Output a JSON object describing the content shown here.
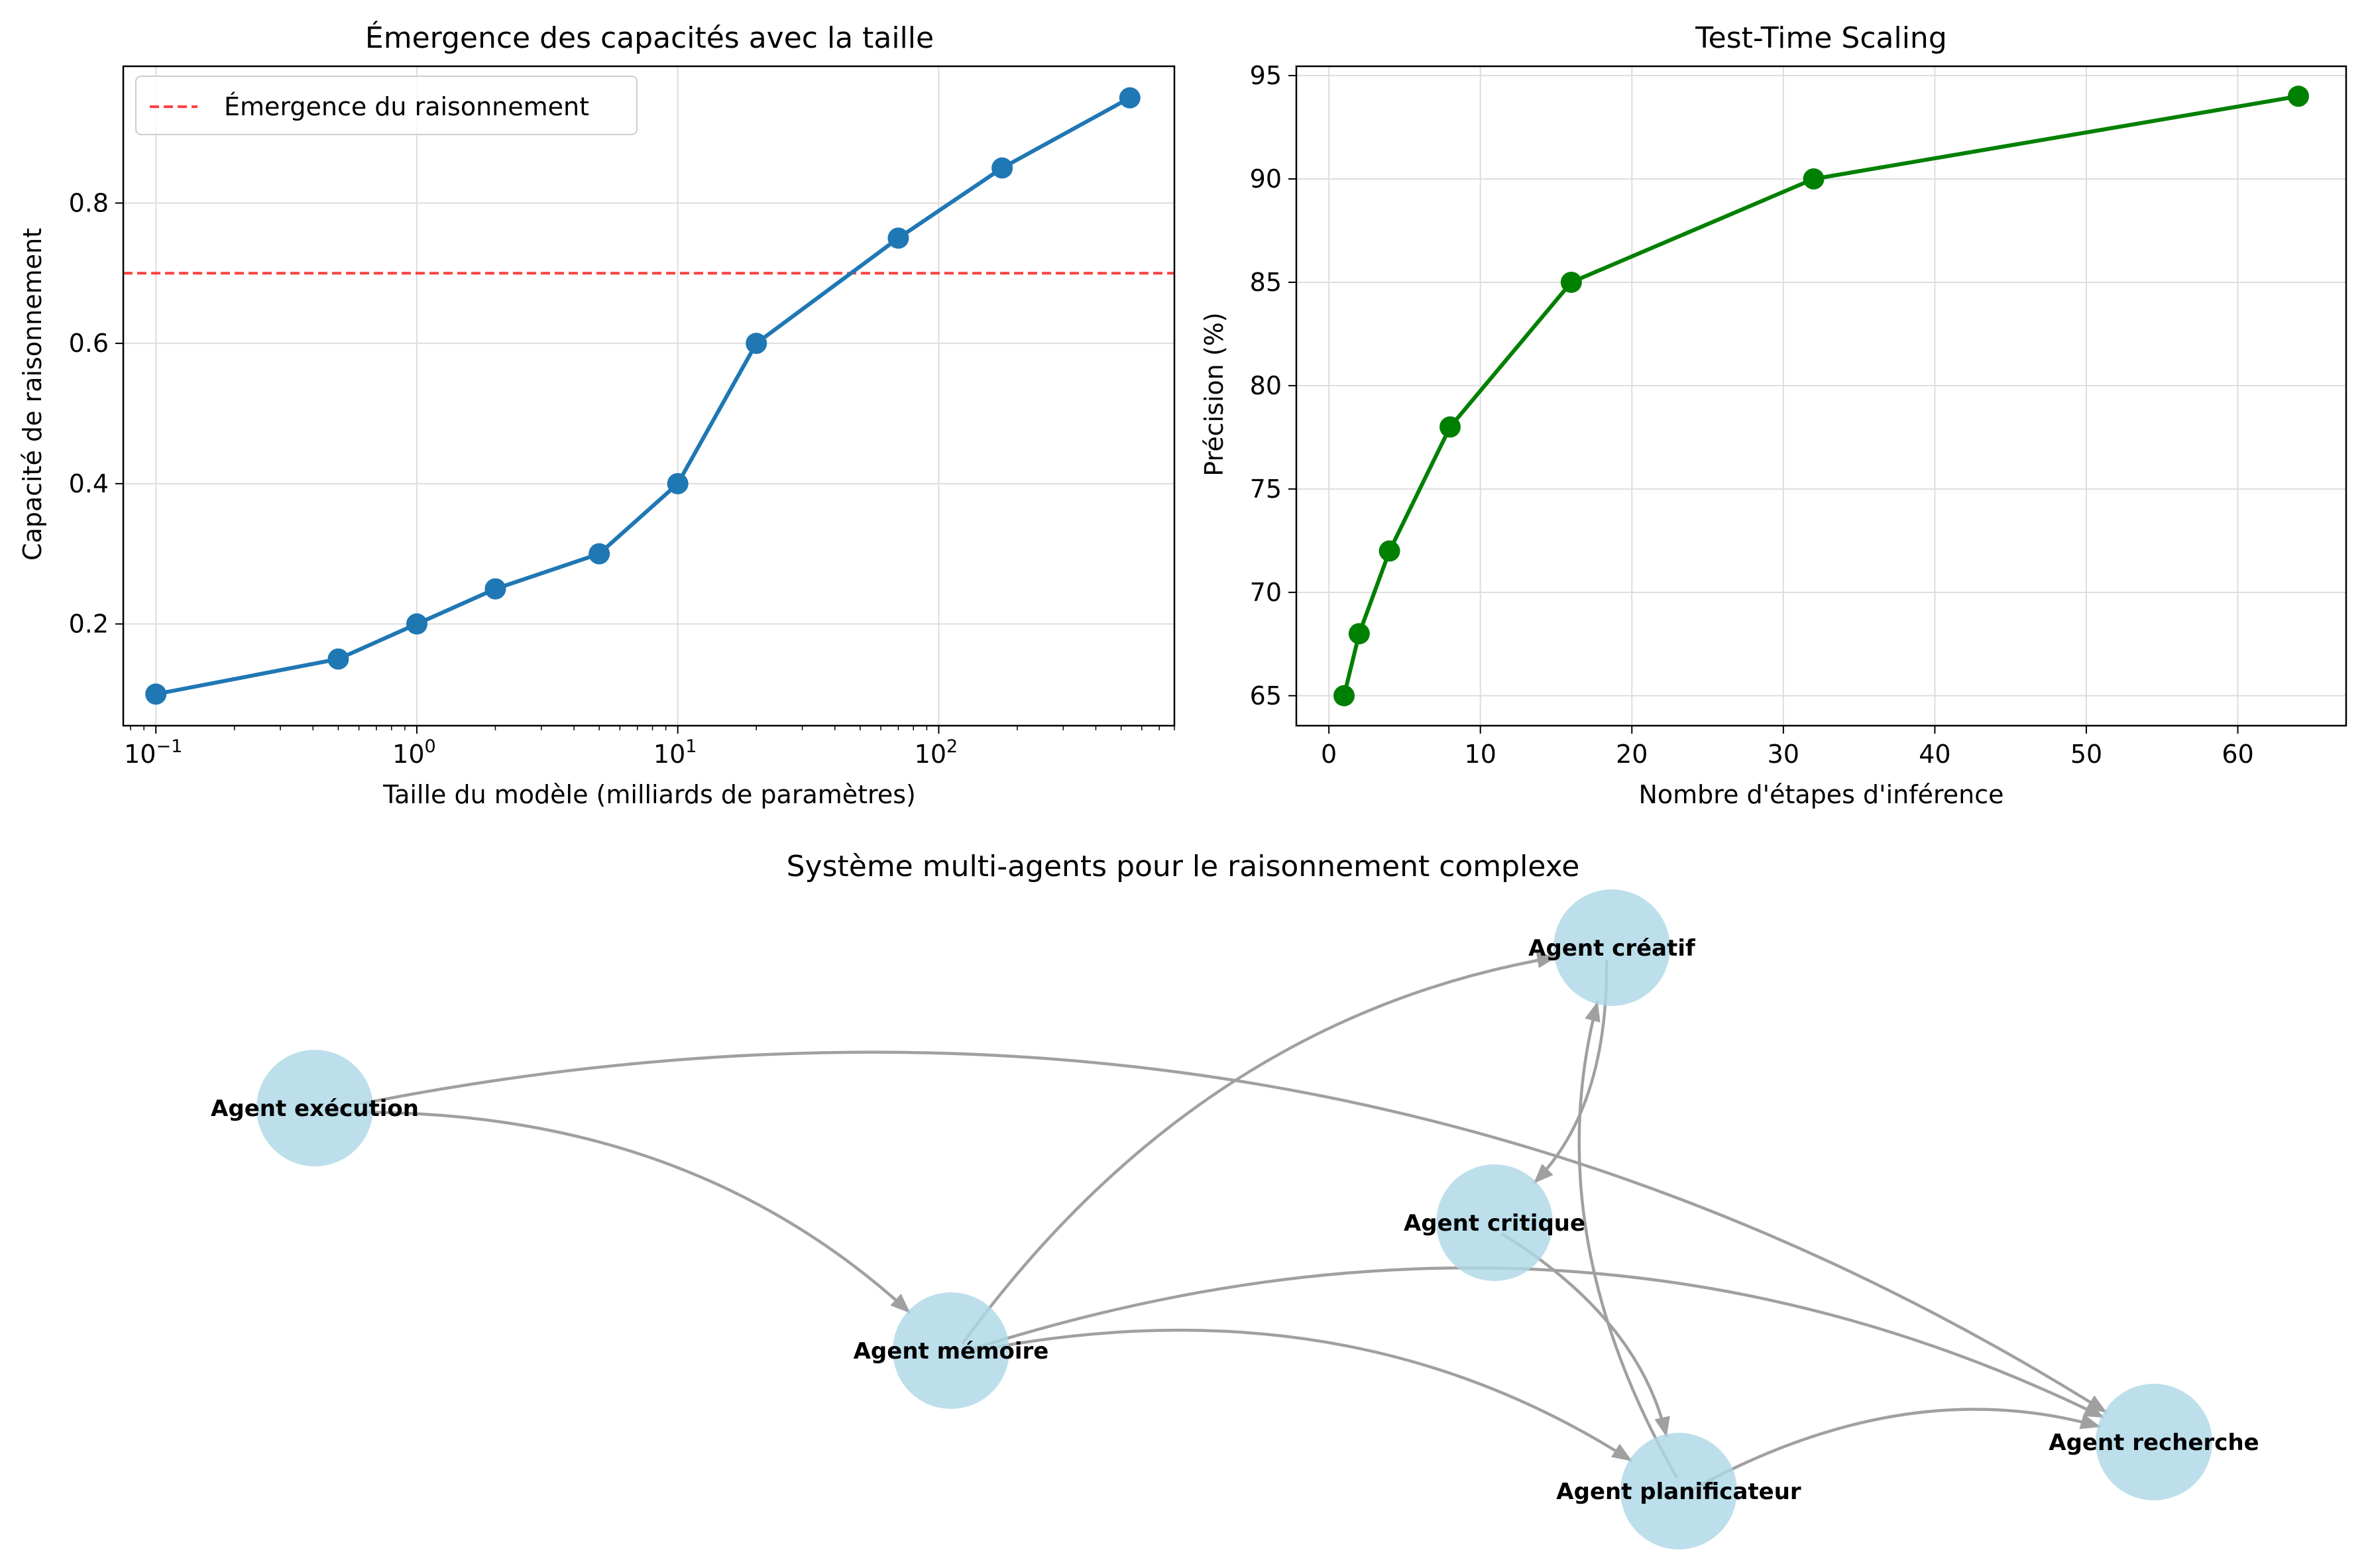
{
  "chart_data": [
    {
      "type": "line",
      "title": "Émergence des capacités avec la taille",
      "xlabel": "Taille du modèle (milliards de paramètres)",
      "ylabel": "Capacité de raisonnement",
      "xscale": "log",
      "xlim": [
        0.075,
        800
      ],
      "ylim": [
        0.055,
        0.995
      ],
      "grid": true,
      "color": "#1f77b4",
      "x": [
        0.1,
        0.5,
        1,
        2,
        5,
        10,
        20,
        70,
        175,
        540
      ],
      "y": [
        0.1,
        0.15,
        0.2,
        0.25,
        0.3,
        0.4,
        0.6,
        0.75,
        0.85,
        0.95
      ],
      "x_ticks": [
        {
          "base": "10",
          "exp": "−1",
          "value": 0.1
        },
        {
          "base": "10",
          "exp": "0",
          "value": 1
        },
        {
          "base": "10",
          "exp": "1",
          "value": 10
        },
        {
          "base": "10",
          "exp": "2",
          "value": 100
        }
      ],
      "y_ticks": [
        "0.2",
        "0.4",
        "0.6",
        "0.8"
      ],
      "hline": {
        "y": 0.7,
        "color": "#ff0000",
        "style": "dashed",
        "label": "Émergence du raisonnement"
      },
      "legend": {
        "placement": "upper-left",
        "entries": [
          "Émergence du raisonnement"
        ]
      }
    },
    {
      "type": "line",
      "title": "Test-Time Scaling",
      "xlabel": "Nombre d'étapes d'inférence",
      "ylabel": "Précision (%)",
      "xlim": [
        -2.15,
        67.15
      ],
      "ylim": [
        63.55,
        95.45
      ],
      "grid": true,
      "color": "#008000",
      "x": [
        1,
        2,
        4,
        8,
        16,
        32,
        64
      ],
      "y": [
        65,
        68,
        72,
        78,
        85,
        90,
        94
      ],
      "x_ticks": [
        "0",
        "10",
        "20",
        "30",
        "40",
        "50",
        "60"
      ],
      "y_ticks": [
        "65",
        "70",
        "75",
        "80",
        "85",
        "90",
        "95"
      ]
    }
  ],
  "graph": {
    "title": "Système multi-agents pour le raisonnement complexe",
    "node_color": "#add8e6",
    "edge_color": "#a0a0a0",
    "nodes": [
      {
        "id": "creatif",
        "label": "Agent créatif"
      },
      {
        "id": "execution",
        "label": "Agent exécution"
      },
      {
        "id": "critique",
        "label": "Agent critique"
      },
      {
        "id": "memoire",
        "label": "Agent mémoire"
      },
      {
        "id": "recherche",
        "label": "Agent recherche"
      },
      {
        "id": "planificateur",
        "label": "Agent planificateur"
      }
    ],
    "edges": [
      {
        "from": "memoire",
        "to": "creatif"
      },
      {
        "from": "creatif",
        "to": "critique"
      },
      {
        "from": "planificateur",
        "to": "creatif"
      },
      {
        "from": "critique",
        "to": "planificateur"
      },
      {
        "from": "execution",
        "to": "recherche"
      },
      {
        "from": "execution",
        "to": "memoire"
      },
      {
        "from": "memoire",
        "to": "planificateur"
      },
      {
        "from": "memoire",
        "to": "recherche"
      },
      {
        "from": "planificateur",
        "to": "recherche"
      }
    ]
  }
}
